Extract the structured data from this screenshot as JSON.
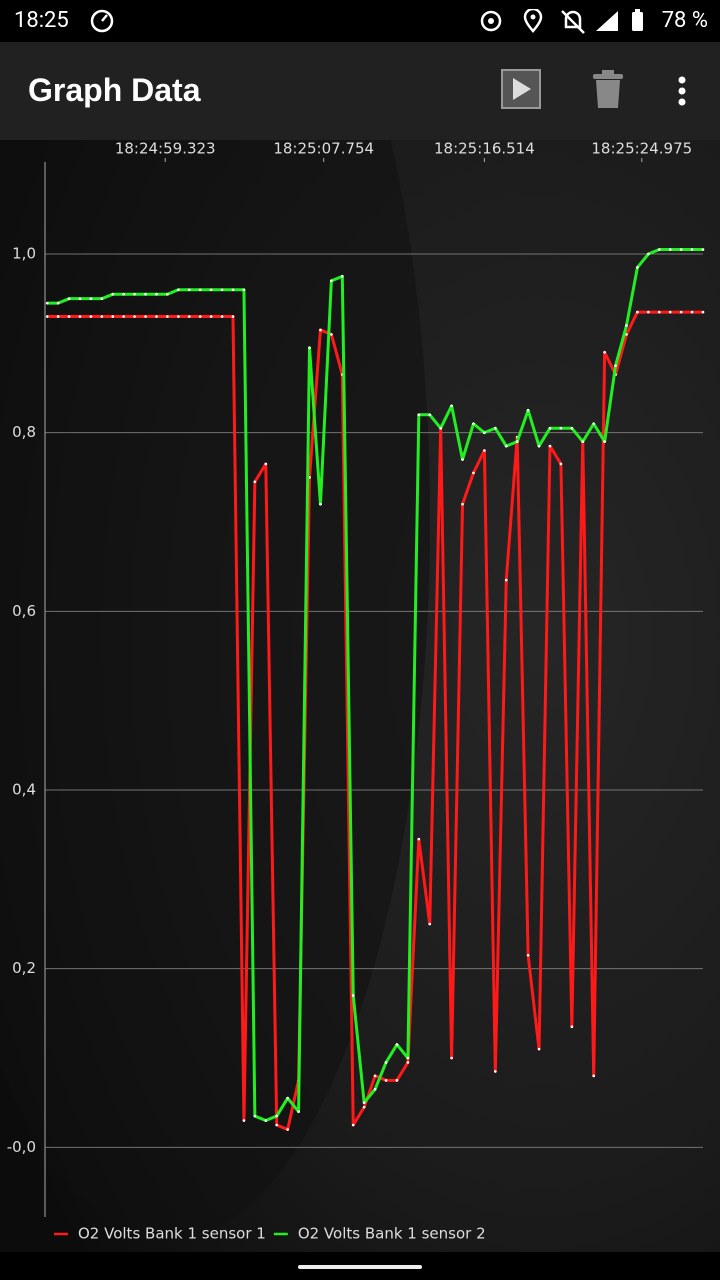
{
  "status_bar": {
    "time": "18:25",
    "battery": "78 %"
  },
  "app_bar": {
    "title": "Graph Data"
  },
  "chart_data": {
    "type": "line",
    "x": [
      0,
      1,
      2,
      3,
      4,
      5,
      6,
      7,
      8,
      9,
      10,
      11,
      12,
      13,
      14,
      15,
      16,
      17,
      18,
      19,
      20,
      21,
      22,
      23,
      24,
      25,
      26,
      27,
      28,
      29,
      30,
      31,
      32,
      33,
      34,
      35,
      36,
      37,
      38,
      39,
      40,
      41,
      42,
      43,
      44,
      45,
      46,
      47,
      48,
      49,
      50,
      51,
      52,
      53,
      54,
      55,
      56,
      57,
      58,
      59,
      60
    ],
    "xlim": [
      -0.2,
      60
    ],
    "xticks": [
      {
        "value": 10.8,
        "label": "18:24:59.323"
      },
      {
        "value": 25.3,
        "label": "18:25:07.754"
      },
      {
        "value": 40,
        "label": "18:25:16.514"
      },
      {
        "value": 54.4,
        "label": "18:25:24.975"
      }
    ],
    "ylim": [
      -0.078,
      1.103
    ],
    "yticks": [
      {
        "value": 0,
        "label": "-0,0"
      },
      {
        "value": 0.2,
        "label": "0,2"
      },
      {
        "value": 0.4,
        "label": "0,4"
      },
      {
        "value": 0.6,
        "label": "0,6"
      },
      {
        "value": 0.8,
        "label": "0,8"
      },
      {
        "value": 1,
        "label": "1,0"
      }
    ],
    "grid": true,
    "legend": "bottom-left",
    "series": [
      {
        "name": "O2 Volts Bank 1 sensor 1",
        "color": "#ff1a1a",
        "values": [
          0.93,
          0.93,
          0.93,
          0.93,
          0.93,
          0.93,
          0.93,
          0.93,
          0.93,
          0.93,
          0.93,
          0.93,
          0.93,
          0.93,
          0.93,
          0.93,
          0.93,
          0.93,
          0.03,
          0.745,
          0.765,
          0.025,
          0.02,
          0.075,
          0.75,
          0.915,
          0.91,
          0.865,
          0.025,
          0.045,
          0.08,
          0.075,
          0.075,
          0.095,
          0.345,
          0.25,
          0.805,
          0.1,
          0.72,
          0.755,
          0.78,
          0.085,
          0.635,
          0.795,
          0.215,
          0.11,
          0.785,
          0.765,
          0.135,
          0.79,
          0.08,
          0.89,
          0.865,
          0.91,
          0.935,
          0.935,
          0.935,
          0.935,
          0.935,
          0.935,
          0.935
        ]
      },
      {
        "name": "O2 Volts Bank 1 sensor 2",
        "color": "#22ee22",
        "values": [
          0.945,
          0.945,
          0.95,
          0.95,
          0.95,
          0.95,
          0.955,
          0.955,
          0.955,
          0.955,
          0.955,
          0.955,
          0.96,
          0.96,
          0.96,
          0.96,
          0.96,
          0.96,
          0.96,
          0.035,
          0.03,
          0.035,
          0.055,
          0.04,
          0.895,
          0.72,
          0.97,
          0.975,
          0.17,
          0.05,
          0.065,
          0.095,
          0.115,
          0.1,
          0.82,
          0.82,
          0.805,
          0.83,
          0.77,
          0.81,
          0.8,
          0.805,
          0.785,
          0.79,
          0.825,
          0.785,
          0.805,
          0.805,
          0.805,
          0.79,
          0.81,
          0.79,
          0.875,
          0.92,
          0.985,
          1.0,
          1.005,
          1.005,
          1.005,
          1.005,
          1.005
        ]
      }
    ]
  }
}
